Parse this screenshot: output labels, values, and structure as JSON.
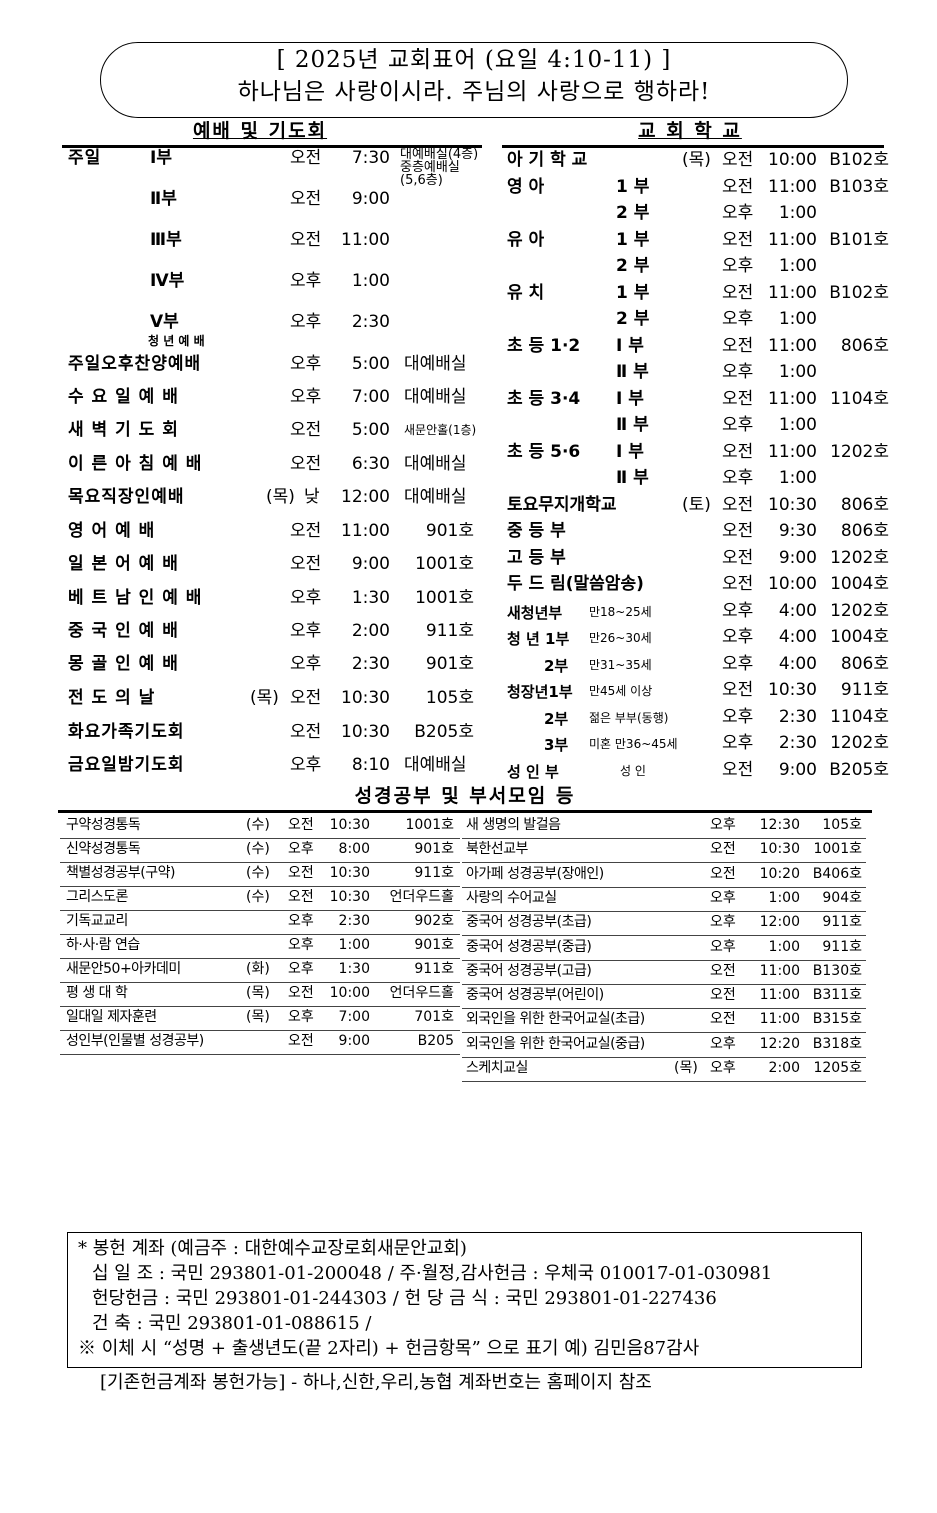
{
  "banner": {
    "line1": "[ 2025년 교회표어 (요일 4:10-11) ]",
    "line2": "하나님은 사랑이시라. 주님의 사랑으로 행하라!"
  },
  "worship": {
    "title": "예배 및 기도회",
    "rows": [
      {
        "name": "주일",
        "part": "Ⅰ부",
        "ampm": "오전",
        "time": "7:30",
        "place": [
          "대예배실(4층)",
          "중층예배실",
          "(5,6층)"
        ]
      },
      {
        "name": "",
        "part": "Ⅱ부",
        "ampm": "오전",
        "time": "9:00",
        "place": []
      },
      {
        "name": "",
        "part": "Ⅲ부",
        "ampm": "오전",
        "time": "11:00",
        "place": []
      },
      {
        "name": "",
        "part": "Ⅳ부",
        "ampm": "오후",
        "time": "1:00",
        "place": []
      },
      {
        "name": "",
        "part": "Ⅴ부",
        "sub": "청 년 예 배",
        "ampm": "오후",
        "time": "2:30",
        "place": []
      },
      {
        "name": "주일오후찬양예배",
        "ampm": "오후",
        "time": "5:00",
        "place": [
          "대예배실"
        ]
      },
      {
        "name": "수 요 일 예 배",
        "ampm": "오후",
        "time": "7:00",
        "place": [
          "대예배실"
        ]
      },
      {
        "name": "새 벽 기 도 회",
        "ampm": "오전",
        "time": "5:00",
        "place": [
          "새문안홀(1층)"
        ]
      },
      {
        "name": "이 른 아 침 예 배",
        "ampm": "오전",
        "time": "6:30",
        "place": [
          "대예배실"
        ]
      },
      {
        "name": "목요직장인예배",
        "day": "(목)",
        "ampm": "낮",
        "time": "12:00",
        "place": [
          "대예배실"
        ]
      },
      {
        "name": "영   어   예   배",
        "ampm": "오전",
        "time": "11:00",
        "place": [
          "901호"
        ]
      },
      {
        "name": "일 본 어 예 배",
        "ampm": "오전",
        "time": "9:00",
        "place": [
          "1001호"
        ]
      },
      {
        "name": "베 트 남 인 예 배",
        "ampm": "오후",
        "time": "1:30",
        "place": [
          "1001호"
        ]
      },
      {
        "name": "중 국 인 예 배",
        "ampm": "오후",
        "time": "2:00",
        "place": [
          "911호"
        ]
      },
      {
        "name": "몽 골 인 예 배",
        "ampm": "오후",
        "time": "2:30",
        "place": [
          "901호"
        ]
      },
      {
        "name": "전   도   의   날",
        "day": "(목)",
        "ampm": "오전",
        "time": "10:30",
        "place": [
          "105호"
        ]
      },
      {
        "name": "화요가족기도회",
        "ampm": "오전",
        "time": "10:30",
        "place": [
          "B205호"
        ]
      },
      {
        "name": "금요일밤기도회",
        "ampm": "오후",
        "time": "8:10",
        "place": [
          "대예배실"
        ]
      }
    ]
  },
  "school": {
    "title": "교 회 학 교",
    "rows": [
      {
        "label": "아   기   학   교",
        "day": "(목)",
        "ampm": "오전",
        "time": "10:00",
        "room": "B102호"
      },
      {
        "label": "영      아",
        "part": "1 부",
        "ampm": "오전",
        "time": "11:00",
        "room": "B103호"
      },
      {
        "label": "",
        "part": "2 부",
        "ampm": "오후",
        "time": "1:00",
        "room": ""
      },
      {
        "label": "유      아",
        "part": "1 부",
        "ampm": "오전",
        "time": "11:00",
        "room": "B101호"
      },
      {
        "label": "",
        "part": "2 부",
        "ampm": "오후",
        "time": "1:00",
        "room": ""
      },
      {
        "label": "유      치",
        "part": "1 부",
        "ampm": "오전",
        "time": "11:00",
        "room": "B102호"
      },
      {
        "label": "",
        "part": "2 부",
        "ampm": "오후",
        "time": "1:00",
        "room": ""
      },
      {
        "label": "초 등 1·2",
        "part": "Ⅰ 부",
        "ampm": "오전",
        "time": "11:00",
        "room": "806호"
      },
      {
        "label": "",
        "part": "Ⅱ 부",
        "ampm": "오후",
        "time": "1:00",
        "room": ""
      },
      {
        "label": "초 등 3·4",
        "part": "Ⅰ 부",
        "ampm": "오전",
        "time": "11:00",
        "room": "1104호"
      },
      {
        "label": "",
        "part": "Ⅱ 부",
        "ampm": "오후",
        "time": "1:00",
        "room": ""
      },
      {
        "label": "초 등 5·6",
        "part": "Ⅰ 부",
        "ampm": "오전",
        "time": "11:00",
        "room": "1202호"
      },
      {
        "label": "",
        "part": "Ⅱ 부",
        "ampm": "오후",
        "time": "1:00",
        "room": ""
      },
      {
        "label": "토요무지개학교",
        "day": "(토)",
        "ampm": "오전",
        "time": "10:30",
        "room": "806호"
      },
      {
        "label": "중       등       부",
        "ampm": "오전",
        "time": "9:30",
        "room": "806호"
      },
      {
        "label": "고       등       부",
        "ampm": "오전",
        "time": "9:00",
        "room": "1202호"
      },
      {
        "label": "두 드 림(말씀암송)",
        "ampm": "오전",
        "time": "10:00",
        "room": "1004호"
      },
      {
        "label": "새청년부",
        "note": "만18~25세",
        "ampm": "오후",
        "time": "4:00",
        "room": "1202호"
      },
      {
        "label": "청 년 1부",
        "note": "만26~30세",
        "ampm": "오후",
        "time": "4:00",
        "room": "1004호"
      },
      {
        "label": "2부",
        "note": "만31~35세",
        "ampm": "오후",
        "time": "4:00",
        "room": "806호"
      },
      {
        "label": "청장년1부",
        "note": "만45세 이상",
        "ampm": "오전",
        "time": "10:30",
        "room": "911호"
      },
      {
        "label": "2부",
        "note": "젊은 부부(동행)",
        "ampm": "오후",
        "time": "2:30",
        "room": "1104호"
      },
      {
        "label": "3부",
        "note": "미혼 만36~45세",
        "ampm": "오후",
        "time": "2:30",
        "room": "1202호"
      },
      {
        "label": "성 인 부",
        "note": "성  인",
        "ampm": "오전",
        "time": "9:00",
        "room": "B205호"
      }
    ]
  },
  "study": {
    "title": "성경공부 및 부서모임 등",
    "left": [
      {
        "name": "구약성경통독",
        "day": "(수)",
        "ampm": "오전",
        "time": "10:30",
        "room": "1001호"
      },
      {
        "name": "신약성경통독",
        "day": "(수)",
        "ampm": "오후",
        "time": "8:00",
        "room": "901호"
      },
      {
        "name": "책별성경공부(구약)",
        "day": "(수)",
        "ampm": "오전",
        "time": "10:30",
        "room": "911호"
      },
      {
        "name": "그리스도론",
        "day": "(수)",
        "ampm": "오전",
        "time": "10:30",
        "room": "언더우드홀"
      },
      {
        "name": "기독교교리",
        "day": "",
        "ampm": "오후",
        "time": "2:30",
        "room": "902호"
      },
      {
        "name": "하·사·람 연습",
        "day": "",
        "ampm": "오후",
        "time": "1:00",
        "room": "901호"
      },
      {
        "name": "새문안50+아카데미",
        "day": "(화)",
        "ampm": "오후",
        "time": "1:30",
        "room": "911호"
      },
      {
        "name": "평  생  대  학",
        "day": "(목)",
        "ampm": "오전",
        "time": "10:00",
        "room": "언더우드홀"
      },
      {
        "name": "일대일 제자훈련",
        "day": "(목)",
        "ampm": "오후",
        "time": "7:00",
        "room": "701호"
      },
      {
        "name": "성인부(인물별 성경공부)",
        "day": "",
        "ampm": "오전",
        "time": "9:00",
        "room": "B205"
      }
    ],
    "right": [
      {
        "name": "새 생명의 발걸음",
        "day": "",
        "ampm": "오후",
        "time": "12:30",
        "room": "105호"
      },
      {
        "name": "북한선교부",
        "day": "",
        "ampm": "오전",
        "time": "10:30",
        "room": "1001호"
      },
      {
        "name": "아가페 성경공부(장애인)",
        "day": "",
        "ampm": "오전",
        "time": "10:20",
        "room": "B406호"
      },
      {
        "name": "사랑의 수어교실",
        "day": "",
        "ampm": "오후",
        "time": "1:00",
        "room": "904호"
      },
      {
        "name": "중국어 성경공부(초급)",
        "day": "",
        "ampm": "오후",
        "time": "12:00",
        "room": "911호"
      },
      {
        "name": "중국어 성경공부(중급)",
        "day": "",
        "ampm": "오후",
        "time": "1:00",
        "room": "911호"
      },
      {
        "name": "중국어 성경공부(고급)",
        "day": "",
        "ampm": "오전",
        "time": "11:00",
        "room": "B130호"
      },
      {
        "name": "중국어 성경공부(어린이)",
        "day": "",
        "ampm": "오전",
        "time": "11:00",
        "room": "B311호"
      },
      {
        "name": "외국인을 위한 한국어교실(초급)",
        "day": "",
        "ampm": "오전",
        "time": "11:00",
        "room": "B315호"
      },
      {
        "name": "외국인을 위한 한국어교실(중급)",
        "day": "",
        "ampm": "오후",
        "time": "12:20",
        "room": "B318호"
      },
      {
        "name": "스케치교실",
        "day": "(목)",
        "ampm": "오후",
        "time": "2:00",
        "room": "1205호"
      }
    ]
  },
  "offering": {
    "heading": "* 봉헌 계좌 (예금주 : 대한예수교장로회새문안교회)",
    "line1": "십 일 조  : 국민 293801-01-200048 / 주·월정,감사헌금 : 우체국 010017-01-030981",
    "line2": "헌당헌금 : 국민 293801-01-244303 / 헌 당 금 식 : 국민 293801-01-227436",
    "line3": "건      축 : 국민 293801-01-088615 /",
    "note": "※ 이체 시  “성명 + 출생년도(끝 2자리) + 헌금항목” 으로 표기  예) 김민음87감사",
    "footer": "[기존헌금계좌 봉헌가능] - 하나,신한,우리,농협 계좌번호는 홈페이지 참조"
  }
}
